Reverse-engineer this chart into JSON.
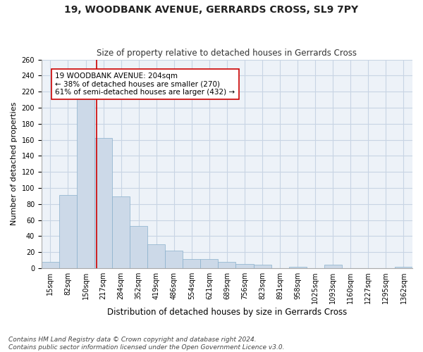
{
  "title": "19, WOODBANK AVENUE, GERRARDS CROSS, SL9 7PY",
  "subtitle": "Size of property relative to detached houses in Gerrards Cross",
  "xlabel": "Distribution of detached houses by size in Gerrards Cross",
  "ylabel": "Number of detached properties",
  "bar_color": "#ccd9e8",
  "bar_edge_color": "#8ab0cc",
  "bar_edge_width": 0.5,
  "categories": [
    "15sqm",
    "82sqm",
    "150sqm",
    "217sqm",
    "284sqm",
    "352sqm",
    "419sqm",
    "486sqm",
    "554sqm",
    "621sqm",
    "689sqm",
    "756sqm",
    "823sqm",
    "891sqm",
    "958sqm",
    "1025sqm",
    "1093sqm",
    "1160sqm",
    "1227sqm",
    "1295sqm",
    "1362sqm"
  ],
  "values": [
    8,
    91,
    215,
    162,
    89,
    53,
    30,
    22,
    11,
    11,
    8,
    5,
    4,
    0,
    2,
    0,
    4,
    0,
    0,
    0,
    2
  ],
  "ylim": [
    0,
    260
  ],
  "yticks": [
    0,
    20,
    40,
    60,
    80,
    100,
    120,
    140,
    160,
    180,
    200,
    220,
    240,
    260
  ],
  "vline_x": 2.62,
  "vline_color": "#cc0000",
  "annotation_title": "19 WOODBANK AVENUE: 204sqm",
  "annotation_line2": "← 38% of detached houses are smaller (270)",
  "annotation_line3": "61% of semi-detached houses are larger (432) →",
  "annotation_box_color": "#ffffff",
  "annotation_box_edge": "#cc0000",
  "grid_color": "#c8d4e4",
  "background_color": "#edf2f8",
  "footer_line1": "Contains HM Land Registry data © Crown copyright and database right 2024.",
  "footer_line2": "Contains public sector information licensed under the Open Government Licence v3.0.",
  "title_fontsize": 10,
  "subtitle_fontsize": 8.5,
  "xlabel_fontsize": 8.5,
  "ylabel_fontsize": 8,
  "tick_fontsize": 7,
  "footer_fontsize": 6.5,
  "annot_fontsize": 7.5
}
